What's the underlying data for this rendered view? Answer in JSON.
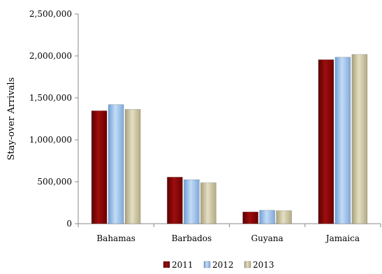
{
  "chart_data": {
    "type": "bar",
    "title": "",
    "xlabel": "",
    "ylabel": "Stay-over Arrivals",
    "categories": [
      "Bahamas",
      "Barbados",
      "Guyana",
      "Jamaica"
    ],
    "series": [
      {
        "name": "2011",
        "values": [
          1346000,
          555000,
          140000,
          1955000
        ],
        "color": "#8b0000"
      },
      {
        "name": "2012",
        "values": [
          1420000,
          525000,
          160000,
          1985000
        ],
        "color": "#8fb8e6"
      },
      {
        "name": "2013",
        "values": [
          1363000,
          488000,
          155000,
          2018000
        ],
        "color": "#c9c19a"
      }
    ],
    "ylim": [
      0,
      2500000
    ],
    "yticks": [
      "0",
      "500,000",
      "1,000,000",
      "1,500,000",
      "2,000,000",
      "2,500,000"
    ],
    "ytick_values": [
      0,
      500000,
      1000000,
      1500000,
      2000000,
      2500000
    ],
    "grid": false,
    "legend_position": "bottom"
  }
}
